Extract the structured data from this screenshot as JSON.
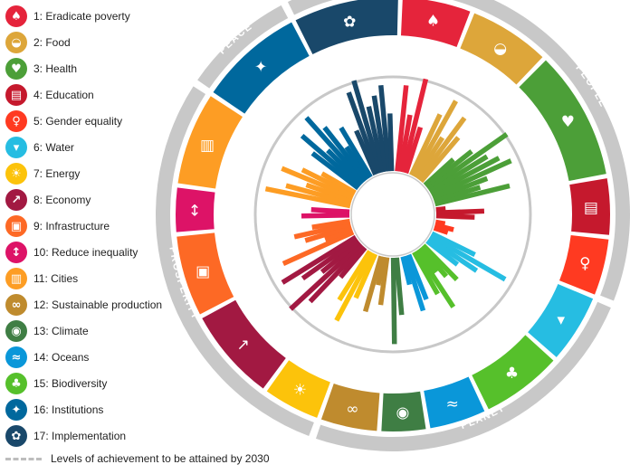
{
  "legend": {
    "items": [
      {
        "label": "1: Eradicate poverty",
        "color": "#E5243B",
        "icon": "family-icon"
      },
      {
        "label": "2: Food",
        "color": "#DDA63A",
        "icon": "bowl-icon"
      },
      {
        "label": "3: Health",
        "color": "#4C9F38",
        "icon": "heartbeat-icon"
      },
      {
        "label": "4: Education",
        "color": "#C5192D",
        "icon": "book-icon"
      },
      {
        "label": "5: Gender equality",
        "color": "#FF3A21",
        "icon": "gender-icon"
      },
      {
        "label": "6: Water",
        "color": "#26BDE2",
        "icon": "water-drop-icon"
      },
      {
        "label": "7: Energy",
        "color": "#FCC30B",
        "icon": "sun-icon"
      },
      {
        "label": "8: Economy",
        "color": "#A21942",
        "icon": "growth-chart-icon"
      },
      {
        "label": "9: Infrastructure",
        "color": "#FD6925",
        "icon": "cubes-icon"
      },
      {
        "label": "10: Reduce inequality",
        "color": "#DD1367",
        "icon": "arrows-icon"
      },
      {
        "label": "11: Cities",
        "color": "#FD9D24",
        "icon": "buildings-icon"
      },
      {
        "label": "12: Sustainable production",
        "color": "#BF8B2E",
        "icon": "infinity-icon"
      },
      {
        "label": "13: Climate",
        "color": "#3F7E44",
        "icon": "eye-globe-icon"
      },
      {
        "label": "14: Oceans",
        "color": "#0A97D9",
        "icon": "fish-icon"
      },
      {
        "label": "15: Biodiversity",
        "color": "#56C02B",
        "icon": "tree-icon"
      },
      {
        "label": "16: Institutions",
        "color": "#00689D",
        "icon": "dove-icon"
      },
      {
        "label": "17: Implementation",
        "color": "#19486A",
        "icon": "rings-icon"
      }
    ],
    "level_note": "Levels of achievement to be attained by 2030"
  },
  "wheel": {
    "groups": [
      "PARTNERSHIP",
      "PEOPLE",
      "PLANET",
      "PROSPERITY",
      "PEACE"
    ],
    "group_color": "#c8c8c8"
  },
  "chart_data": {
    "type": "radial-bar",
    "goal_order": [
      1,
      2,
      3,
      4,
      5,
      6,
      15,
      14,
      13,
      12,
      7,
      8,
      9,
      10,
      11,
      16,
      17
    ],
    "groups": [
      {
        "name": "PEOPLE",
        "goals": [
          1,
          2,
          3,
          4,
          5
        ]
      },
      {
        "name": "PLANET",
        "goals": [
          6,
          15,
          14,
          13,
          12
        ]
      },
      {
        "name": "PROSPERITY",
        "goals": [
          7,
          8,
          9,
          10,
          11
        ]
      },
      {
        "name": "PEACE",
        "goals": [
          16
        ]
      },
      {
        "name": "PARTNERSHIP",
        "goals": [
          17
        ]
      }
    ],
    "target_level": 1.0,
    "series": [
      {
        "goal": 1,
        "values": [
          0.9,
          0.6,
          1.0,
          0.5
        ]
      },
      {
        "goal": 2,
        "values": [
          0.7,
          0.9,
          0.5,
          0.8,
          0.6
        ]
      },
      {
        "goal": 3,
        "values": [
          0.4,
          0.6,
          1.0,
          0.7,
          0.8,
          0.9,
          0.6,
          0.5,
          0.8
        ]
      },
      {
        "goal": 4,
        "values": [
          0.1,
          0.5,
          0.4
        ]
      },
      {
        "goal": 5,
        "values": [
          0.1,
          0.2,
          0.15
        ]
      },
      {
        "goal": 6,
        "values": [
          0.5,
          0.9,
          0.6,
          0.4
        ]
      },
      {
        "goal": 15,
        "values": [
          0.5,
          0.4,
          0.3,
          0.7,
          0.5
        ]
      },
      {
        "goal": 14,
        "values": [
          0.5,
          0.6,
          0.3
        ]
      },
      {
        "goal": 13,
        "values": [
          0.6,
          0.9
        ]
      },
      {
        "goal": 12,
        "values": [
          0.5,
          0.3,
          0.6
        ]
      },
      {
        "goal": 7,
        "values": [
          0.5,
          0.8,
          0.6
        ]
      },
      {
        "goal": 8,
        "values": [
          0.4,
          0.8,
          1.0,
          0.5,
          0.7,
          0.9
        ]
      },
      {
        "goal": 9,
        "values": [
          0.8,
          0.3,
          0.5,
          0.6,
          0.4
        ]
      },
      {
        "goal": 10,
        "values": [
          0.5,
          0.4
        ]
      },
      {
        "goal": 11,
        "values": [
          0.9,
          0.7,
          0.5,
          0.8,
          0.6,
          0.4
        ]
      },
      {
        "goal": 16,
        "values": [
          0.6,
          0.8,
          0.5,
          0.9,
          0.7,
          0.4,
          0.6
        ]
      },
      {
        "goal": 17,
        "values": [
          0.5,
          0.9,
          1.0,
          0.7,
          0.8,
          0.9,
          0.6
        ]
      }
    ]
  }
}
